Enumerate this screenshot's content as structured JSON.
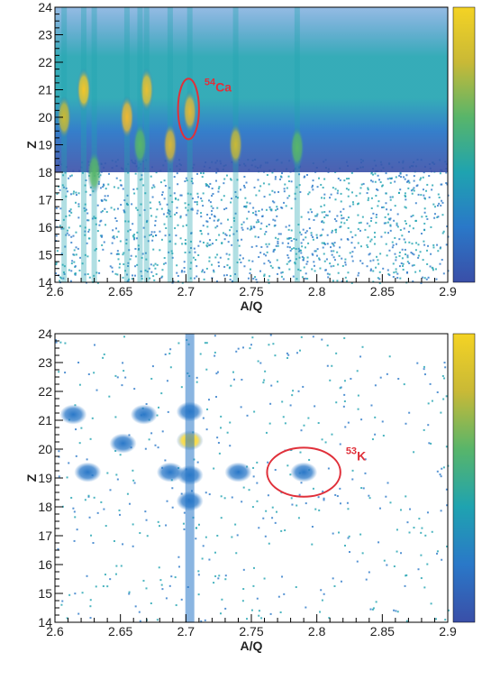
{
  "chart_data": [
    {
      "type": "histogram2d",
      "xlabel": "A/Q",
      "ylabel": "Z",
      "xlim": [
        2.6,
        2.9
      ],
      "ylim": [
        14,
        24
      ],
      "xticks": [
        2.6,
        2.65,
        2.7,
        2.75,
        2.8,
        2.85,
        2.9
      ],
      "yticks": [
        14,
        15,
        16,
        17,
        18,
        19,
        20,
        21,
        22,
        23,
        24
      ],
      "colorscale": [
        "#3a4fa8",
        "#2a78c8",
        "#1fa3b0",
        "#58b56a",
        "#c9b936",
        "#f4d324"
      ],
      "background_band": true,
      "peaks": {
        "x": [
          2.622,
          2.655,
          2.67,
          2.688,
          2.703,
          2.738,
          2.785,
          2.607,
          2.63,
          2.665
        ],
        "y": [
          21,
          20,
          21,
          19,
          20.2,
          19,
          18.9,
          20,
          18,
          19
        ],
        "colors": [
          "#f4c628",
          "#f0b830",
          "#e8c032",
          "#d6b63a",
          "#e0b838",
          "#c9b936",
          "#58b56a",
          "#c9b936",
          "#58b56a",
          "#58b56a"
        ]
      },
      "annotation": {
        "mass": "54",
        "symbol": "Ca",
        "color": "#e0303a",
        "x": 2.702,
        "y": 20.3,
        "width": 0.008,
        "height": 1.1
      }
    },
    {
      "type": "histogram2d",
      "xlabel": "A/Q",
      "ylabel": "Z",
      "xlim": [
        2.6,
        2.9
      ],
      "ylim": [
        14,
        24
      ],
      "xticks": [
        2.6,
        2.65,
        2.7,
        2.75,
        2.8,
        2.85,
        2.9
      ],
      "yticks": [
        14,
        15,
        16,
        17,
        18,
        19,
        20,
        21,
        22,
        23,
        24
      ],
      "colorscale": [
        "#3a4fa8",
        "#2a78c8",
        "#1fa3b0",
        "#58b56a",
        "#c9b936",
        "#f4d324"
      ],
      "background_band": false,
      "peaks": {
        "x": [
          2.614,
          2.652,
          2.668,
          2.703,
          2.703,
          2.688,
          2.625,
          2.74,
          2.79,
          2.703,
          2.703
        ],
        "y": [
          21.2,
          20.2,
          21.2,
          20.3,
          21.3,
          19.2,
          19.2,
          19.2,
          19.2,
          18.2,
          19.1
        ],
        "colors": [
          "#2a78c8",
          "#2a78c8",
          "#2a78c8",
          "#f4d324",
          "#2a78c8",
          "#2a78c8",
          "#2a78c8",
          "#2a78c8",
          "#2a78c8",
          "#2a78c8",
          "#2a78c8"
        ]
      },
      "annotation": {
        "mass": "53",
        "symbol": "K",
        "color": "#e0303a",
        "x": 2.79,
        "y": 19.2,
        "width": 0.028,
        "height": 0.85
      }
    }
  ]
}
